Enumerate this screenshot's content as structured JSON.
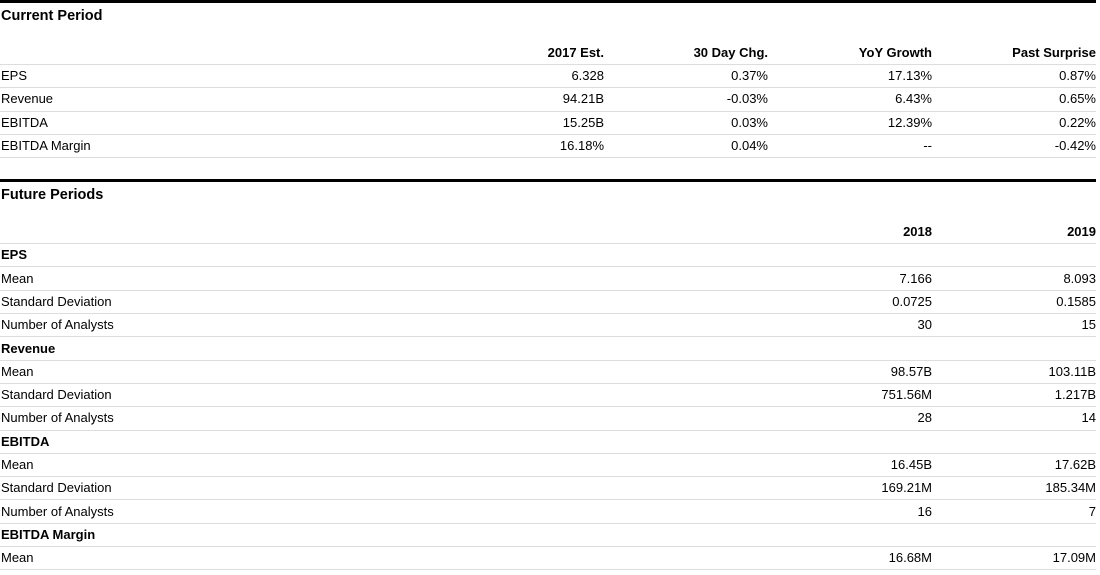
{
  "current": {
    "title": "Current Period",
    "headers": [
      "2017 Est.",
      "30 Day Chg.",
      "YoY Growth",
      "Past Surprise"
    ],
    "rows": [
      {
        "label": "EPS",
        "values": [
          "6.328",
          "0.37%",
          "17.13%",
          "0.87%"
        ]
      },
      {
        "label": "Revenue",
        "values": [
          "94.21B",
          "-0.03%",
          "6.43%",
          "0.65%"
        ]
      },
      {
        "label": "EBITDA",
        "values": [
          "15.25B",
          "0.03%",
          "12.39%",
          "0.22%"
        ]
      },
      {
        "label": "EBITDA Margin",
        "values": [
          "16.18%",
          "0.04%",
          "--",
          "-0.42%"
        ]
      }
    ]
  },
  "future": {
    "title": "Future Periods",
    "headers": [
      "2018",
      "2019"
    ],
    "groups": [
      {
        "name": "EPS",
        "rows": [
          {
            "label": "Mean",
            "values": [
              "7.166",
              "8.093"
            ]
          },
          {
            "label": "Standard Deviation",
            "values": [
              "0.0725",
              "0.1585"
            ]
          },
          {
            "label": "Number of Analysts",
            "values": [
              "30",
              "15"
            ]
          }
        ]
      },
      {
        "name": "Revenue",
        "rows": [
          {
            "label": "Mean",
            "values": [
              "98.57B",
              "103.11B"
            ]
          },
          {
            "label": "Standard Deviation",
            "values": [
              "751.56M",
              "1.217B"
            ]
          },
          {
            "label": "Number of Analysts",
            "values": [
              "28",
              "14"
            ]
          }
        ]
      },
      {
        "name": "EBITDA",
        "rows": [
          {
            "label": "Mean",
            "values": [
              "16.45B",
              "17.62B"
            ]
          },
          {
            "label": "Standard Deviation",
            "values": [
              "169.21M",
              "185.34M"
            ]
          },
          {
            "label": "Number of Analysts",
            "values": [
              "16",
              "7"
            ]
          }
        ]
      },
      {
        "name": "EBITDA Margin",
        "rows": [
          {
            "label": "Mean",
            "values": [
              "16.68M",
              "17.09M"
            ]
          }
        ]
      }
    ]
  }
}
